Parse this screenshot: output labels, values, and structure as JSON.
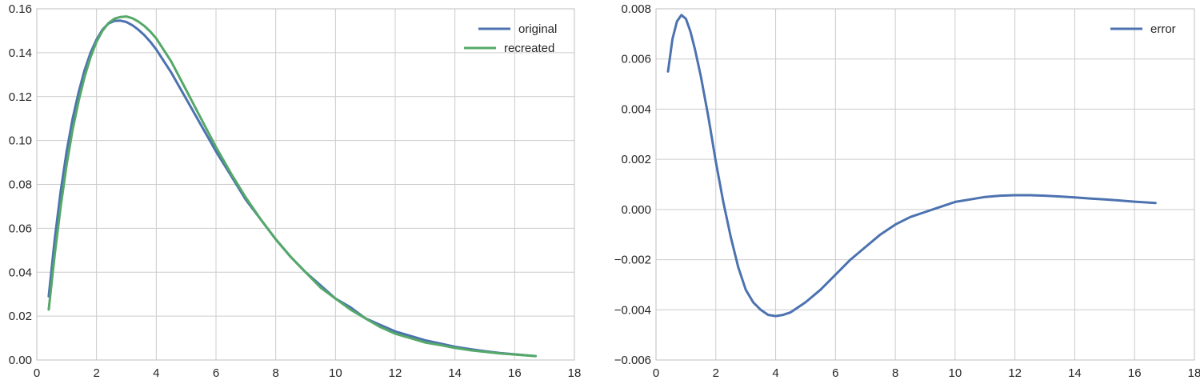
{
  "chart_data": [
    {
      "type": "line",
      "title": "",
      "xlabel": "",
      "ylabel": "",
      "xlim": [
        0,
        18
      ],
      "ylim": [
        0,
        0.16
      ],
      "xticks": [
        0,
        2,
        4,
        6,
        8,
        10,
        12,
        14,
        16,
        18
      ],
      "xtick_labels": [
        "0",
        "2",
        "4",
        "6",
        "8",
        "10",
        "12",
        "14",
        "16",
        "18"
      ],
      "yticks": [
        0,
        0.02,
        0.04,
        0.06,
        0.08,
        0.1,
        0.12,
        0.14,
        0.16
      ],
      "ytick_labels": [
        "0.00",
        "0.02",
        "0.04",
        "0.06",
        "0.08",
        "0.10",
        "0.12",
        "0.14",
        "0.16"
      ],
      "grid": true,
      "legend": "top-right",
      "series": [
        {
          "name": "original",
          "color": "#4c72b0",
          "x": [
            0.4,
            0.6,
            0.8,
            1.0,
            1.2,
            1.4,
            1.6,
            1.8,
            2.0,
            2.2,
            2.4,
            2.6,
            2.8,
            3.0,
            3.2,
            3.4,
            3.6,
            3.8,
            4.0,
            4.5,
            5.0,
            5.5,
            6.0,
            6.5,
            7.0,
            7.5,
            8.0,
            8.5,
            9.0,
            9.5,
            10.0,
            10.5,
            11.0,
            11.5,
            12.0,
            12.5,
            13.0,
            13.5,
            14.0,
            14.5,
            15.0,
            15.5,
            16.0,
            16.7
          ],
          "y": [
            0.029,
            0.055,
            0.077,
            0.095,
            0.11,
            0.122,
            0.132,
            0.14,
            0.146,
            0.1505,
            0.1533,
            0.1545,
            0.1546,
            0.154,
            0.1525,
            0.1505,
            0.148,
            0.145,
            0.1415,
            0.131,
            0.119,
            0.107,
            0.095,
            0.084,
            0.073,
            0.064,
            0.055,
            0.047,
            0.04,
            0.034,
            0.028,
            0.024,
            0.019,
            0.016,
            0.013,
            0.011,
            0.009,
            0.0075,
            0.006,
            0.005,
            0.004,
            0.0032,
            0.0026,
            0.0018
          ]
        },
        {
          "name": "recreated",
          "color": "#55a868",
          "x": [
            0.4,
            0.6,
            0.8,
            1.0,
            1.2,
            1.4,
            1.6,
            1.8,
            2.0,
            2.2,
            2.4,
            2.6,
            2.8,
            3.0,
            3.2,
            3.4,
            3.6,
            3.8,
            4.0,
            4.5,
            5.0,
            5.5,
            6.0,
            6.5,
            7.0,
            7.5,
            8.0,
            8.5,
            9.0,
            9.5,
            10.0,
            10.5,
            11.0,
            11.5,
            12.0,
            12.5,
            13.0,
            13.5,
            14.0,
            14.5,
            15.0,
            15.5,
            16.0,
            16.7
          ],
          "y": [
            0.023,
            0.048,
            0.07,
            0.089,
            0.105,
            0.118,
            0.129,
            0.138,
            0.145,
            0.15,
            0.1535,
            0.1555,
            0.1563,
            0.1565,
            0.1557,
            0.1542,
            0.1522,
            0.1496,
            0.1465,
            0.136,
            0.123,
            0.11,
            0.097,
            0.085,
            0.074,
            0.064,
            0.055,
            0.047,
            0.04,
            0.033,
            0.028,
            0.023,
            0.019,
            0.015,
            0.012,
            0.01,
            0.008,
            0.0068,
            0.0055,
            0.0045,
            0.0037,
            0.003,
            0.0025,
            0.0018
          ]
        }
      ]
    },
    {
      "type": "line",
      "title": "",
      "xlabel": "",
      "ylabel": "",
      "xlim": [
        0,
        18
      ],
      "ylim": [
        -0.006,
        0.008
      ],
      "xticks": [
        0,
        2,
        4,
        6,
        8,
        10,
        12,
        14,
        16,
        18
      ],
      "xtick_labels": [
        "0",
        "2",
        "4",
        "6",
        "8",
        "10",
        "12",
        "14",
        "16",
        "18"
      ],
      "yticks": [
        -0.006,
        -0.004,
        -0.002,
        0,
        0.002,
        0.004,
        0.006,
        0.008
      ],
      "ytick_labels": [
        "−0.006",
        "−0.004",
        "−0.002",
        "0.000",
        "0.002",
        "0.004",
        "0.006",
        "0.008"
      ],
      "grid": true,
      "legend": "top-right",
      "series": [
        {
          "name": "error",
          "color": "#4c72b0",
          "x": [
            0.4,
            0.55,
            0.7,
            0.85,
            1.0,
            1.15,
            1.3,
            1.5,
            1.75,
            2.0,
            2.25,
            2.5,
            2.75,
            3.0,
            3.25,
            3.5,
            3.75,
            4.0,
            4.25,
            4.5,
            4.75,
            5.0,
            5.5,
            6.0,
            6.5,
            7.0,
            7.5,
            8.0,
            8.5,
            9.0,
            9.5,
            10.0,
            10.5,
            11.0,
            11.5,
            12.0,
            12.5,
            13.0,
            13.5,
            14.0,
            14.5,
            15.0,
            15.5,
            16.0,
            16.7
          ],
          "y": [
            0.0055,
            0.0068,
            0.0075,
            0.00775,
            0.0076,
            0.0071,
            0.0064,
            0.0053,
            0.0037,
            0.0019,
            0.0003,
            -0.0011,
            -0.0023,
            -0.0032,
            -0.0037,
            -0.004,
            -0.0042,
            -0.00425,
            -0.0042,
            -0.0041,
            -0.0039,
            -0.0037,
            -0.0032,
            -0.0026,
            -0.002,
            -0.0015,
            -0.001,
            -0.0006,
            -0.0003,
            -0.0001,
            0.0001,
            0.0003,
            0.0004,
            0.0005,
            0.00055,
            0.00057,
            0.00057,
            0.00055,
            0.00052,
            0.00048,
            0.00044,
            0.0004,
            0.00036,
            0.00031,
            0.00026
          ]
        }
      ]
    }
  ]
}
